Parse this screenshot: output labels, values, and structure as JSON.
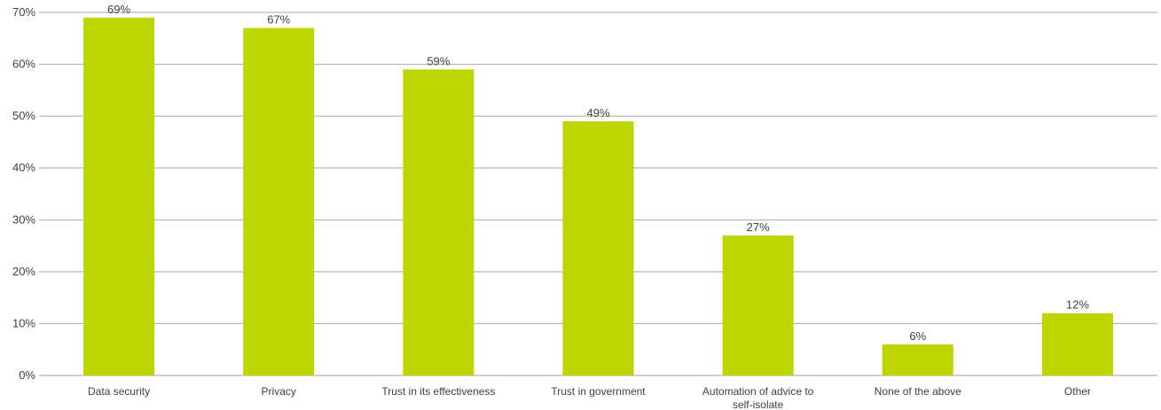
{
  "chart_data": {
    "type": "bar",
    "categories": [
      [
        "Data security"
      ],
      [
        "Privacy"
      ],
      [
        "Trust in its effectiveness"
      ],
      [
        "Trust in government"
      ],
      [
        "Automation of advice to",
        "self-isolate"
      ],
      [
        "None of the above"
      ],
      [
        "Other"
      ]
    ],
    "values": [
      69,
      67,
      59,
      49,
      27,
      6,
      12
    ],
    "data_labels": [
      "69%",
      "67%",
      "59%",
      "49%",
      "27%",
      "6%",
      "12%"
    ],
    "y_ticks": [
      0,
      10,
      20,
      30,
      40,
      50,
      60,
      70
    ],
    "y_tick_labels": [
      "0%",
      "10%",
      "20%",
      "30%",
      "40%",
      "50%",
      "60%",
      "70%"
    ],
    "ylim": [
      0,
      70
    ],
    "grid": true,
    "legend": "none",
    "colors": {
      "bar": "#bed600",
      "grid": "#a6a6a6",
      "text": "#404040"
    }
  }
}
